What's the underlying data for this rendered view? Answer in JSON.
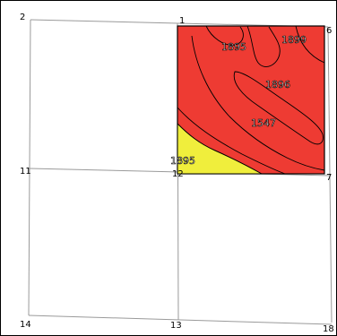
{
  "map": {
    "colors": {
      "zone_red": "#ee3b33",
      "zone_yellow": "#f0ee3c",
      "section_line": "#9a9a9a",
      "contour": "#000000"
    },
    "section_corners": {
      "top_left": "2",
      "top_mid": "1",
      "top_right": "6",
      "left_mid": "11",
      "center": "12",
      "right_mid": "7",
      "bottom_left": "14",
      "bottom_mid": "13",
      "bottom_right": "18"
    },
    "contour_labels": {
      "a": "1895",
      "b": "1899",
      "c": "1896",
      "d": "1547",
      "e": "1895"
    }
  }
}
